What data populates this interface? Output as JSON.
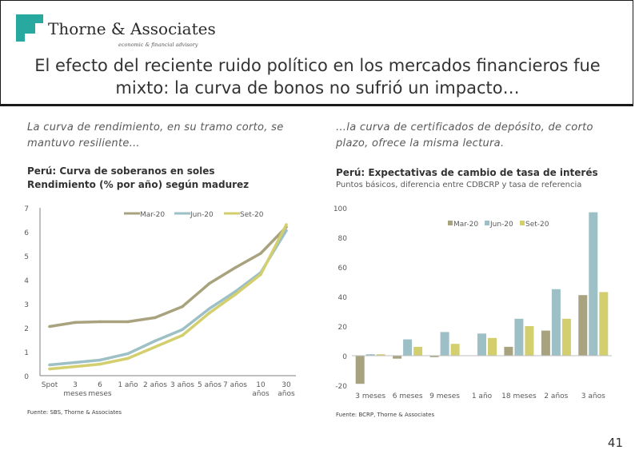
{
  "header": {
    "brand": "Thorne & Associates",
    "tagline": "economic & financial advisory",
    "title_line1": "El efecto del reciente ruido político en los mercados financieros fue",
    "title_line2": "mixto: la curva de bonos no sufrió un impacto…"
  },
  "left": {
    "intro_line1": "La curva de rendimiento, en su tramo corto, se",
    "intro_line2": "mantuvo resiliente…",
    "chart_title_line1": "Perú: Curva de soberanos en soles",
    "chart_title_line2": "Rendimiento (% por año) según madurez",
    "source": "Fuente: SBS, Thorne & Associates"
  },
  "right": {
    "intro_line1": "…la curva de certificados de depósito, de corto",
    "intro_line2": "plazo, ofrece la misma lectura.",
    "chart_title": "Perú: Expectativas de cambio de tasa de interés",
    "chart_subtitle": "Puntos básicos, diferencia entre CDBCRP y tasa de referencia",
    "source": "Fuente: BCRP, Thorne & Associates"
  },
  "page_number": "41",
  "colors": {
    "mar20": "#a8a37e",
    "jun20": "#9dbfc6",
    "set20": "#d3cf6e",
    "teal": "#28a9a0"
  },
  "chart_data": [
    {
      "type": "line",
      "title": "Perú: Curva de soberanos en soles",
      "ylabel": "Rendimiento (% por año)",
      "categories": [
        "Spot",
        "3\nmeses",
        "6\nmeses",
        "1 año",
        "2 años",
        "3 años",
        "5 años",
        "7 años",
        "10\naños",
        "30\naños"
      ],
      "ylim": [
        0,
        7
      ],
      "yticks": [
        0,
        1,
        2,
        3,
        4,
        5,
        6,
        7
      ],
      "series": [
        {
          "name": "Mar-20",
          "color": "#a8a37e",
          "values": [
            2.05,
            2.22,
            2.25,
            2.25,
            2.42,
            2.88,
            3.85,
            4.5,
            5.1,
            6.2
          ]
        },
        {
          "name": "Jun-20",
          "color": "#9dbfc6",
          "values": [
            0.45,
            0.55,
            0.65,
            0.92,
            1.45,
            1.92,
            2.8,
            3.5,
            4.3,
            6.05
          ]
        },
        {
          "name": "Set-20",
          "color": "#d3cf6e",
          "values": [
            0.28,
            0.38,
            0.48,
            0.72,
            1.2,
            1.68,
            2.62,
            3.38,
            4.22,
            6.3
          ]
        }
      ],
      "legend": "top"
    },
    {
      "type": "bar",
      "title": "Perú: Expectativas de cambio de tasa de interés",
      "subtitle": "Puntos básicos, diferencia entre CDBCRP y tasa de referencia",
      "categories": [
        "3 meses",
        "6 meses",
        "9 meses",
        "1 año",
        "18 meses",
        "2 años",
        "3 años"
      ],
      "ylim": [
        -20,
        100
      ],
      "yticks": [
        -20,
        0,
        20,
        40,
        60,
        80,
        100
      ],
      "series": [
        {
          "name": "Mar-20",
          "color": "#a8a37e",
          "values": [
            -19,
            -2,
            -1,
            0,
            6,
            17,
            41
          ]
        },
        {
          "name": "Jun-20",
          "color": "#9dbfc6",
          "values": [
            1,
            11,
            16,
            15,
            25,
            45,
            97
          ]
        },
        {
          "name": "Set-20",
          "color": "#d3cf6e",
          "values": [
            1,
            6,
            8,
            12,
            20,
            25,
            43
          ]
        }
      ],
      "legend": "top-right"
    }
  ]
}
